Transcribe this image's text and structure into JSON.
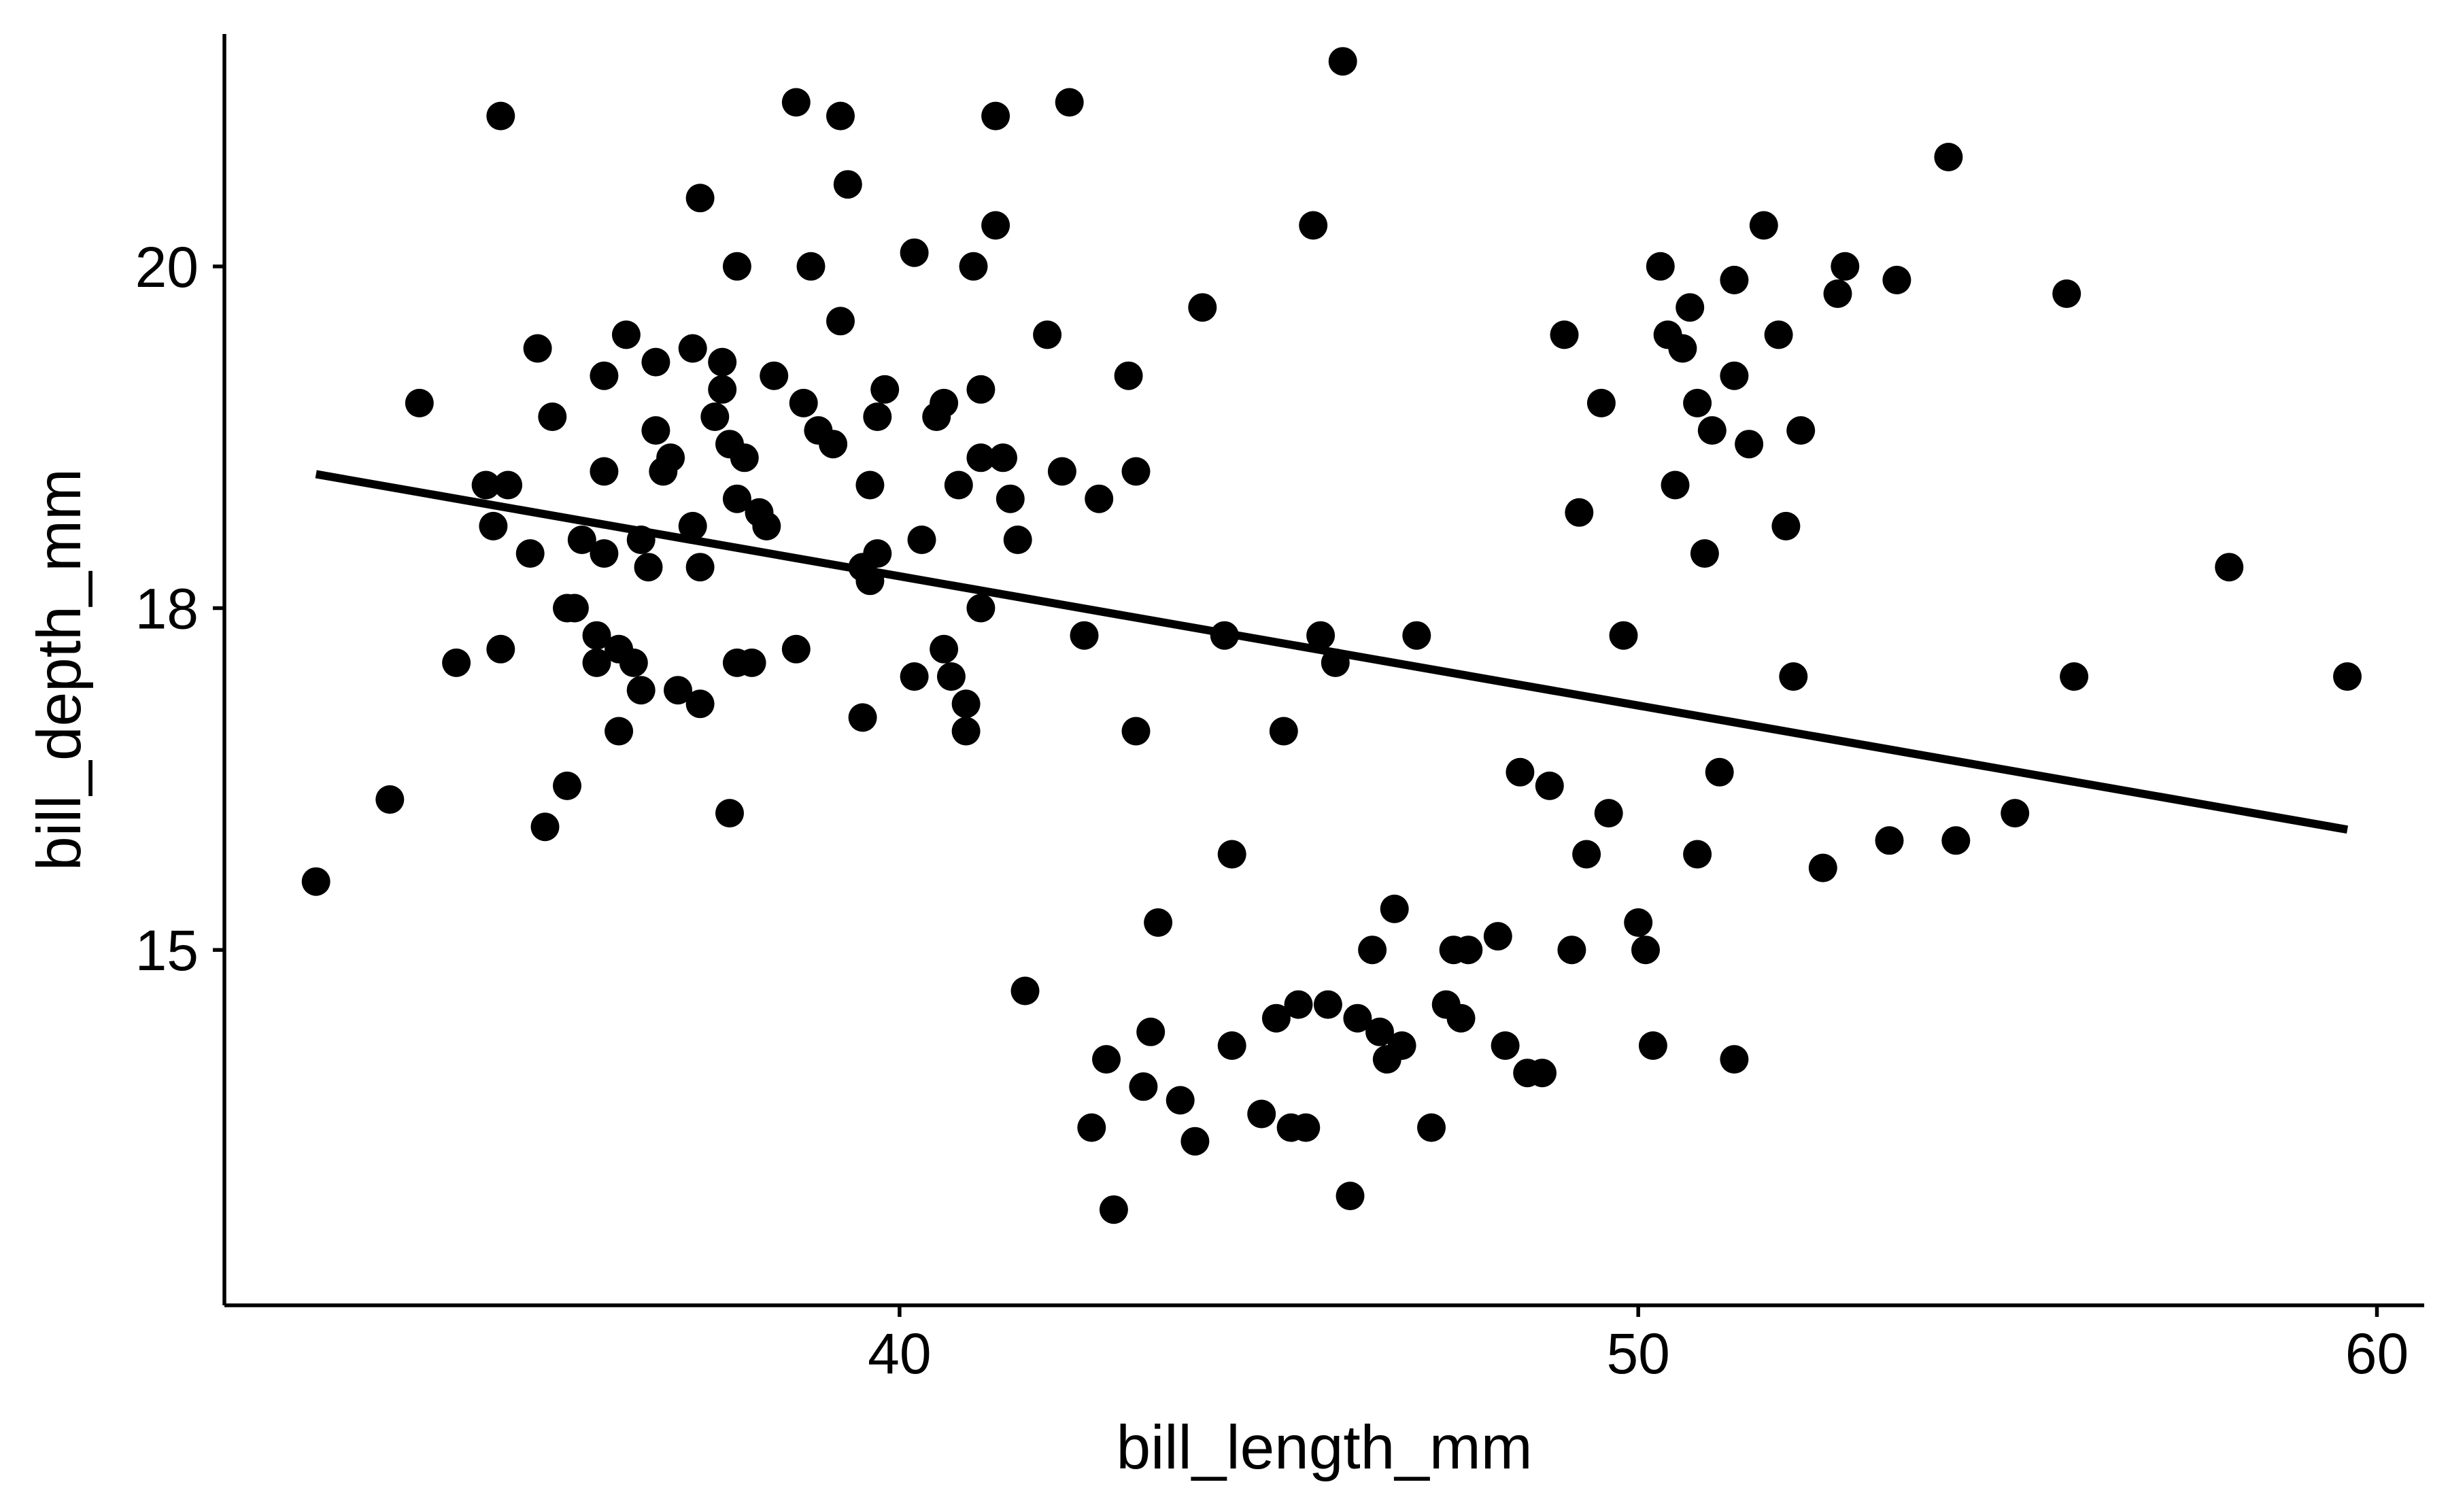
{
  "chart_data": {
    "type": "scatter",
    "title": "",
    "xlabel": "bill_length_mm",
    "ylabel": "bill_depth_mm",
    "xlim": [
      30.86,
      60.64
    ],
    "ylim": [
      12.4,
      21.7
    ],
    "x_ticks": [
      40,
      50,
      60
    ],
    "y_ticks": [
      15,
      18,
      20
    ],
    "y_tick_positions": [
      15,
      17.5,
      20
    ],
    "grid": false,
    "point_color": "#000000",
    "line_color": "#000000",
    "series": [
      {
        "type": "scatter",
        "points": [
          [
            32.1,
            15.5
          ],
          [
            33.1,
            16.1
          ],
          [
            33.5,
            19.0
          ],
          [
            34.0,
            17.1
          ],
          [
            34.4,
            18.4
          ],
          [
            34.5,
            18.1
          ],
          [
            34.6,
            21.1
          ],
          [
            34.6,
            17.2
          ],
          [
            34.7,
            18.4
          ],
          [
            35.0,
            17.9
          ],
          [
            35.1,
            19.4
          ],
          [
            35.2,
            15.9
          ],
          [
            35.3,
            18.9
          ],
          [
            35.5,
            17.5
          ],
          [
            35.5,
            16.2
          ],
          [
            35.6,
            17.5
          ],
          [
            35.7,
            18.0
          ],
          [
            35.9,
            17.1
          ],
          [
            35.9,
            17.3
          ],
          [
            36.0,
            18.5
          ],
          [
            36.0,
            17.9
          ],
          [
            36.0,
            19.2
          ],
          [
            36.2,
            16.6
          ],
          [
            36.2,
            17.2
          ],
          [
            36.3,
            19.5
          ],
          [
            36.4,
            17.1
          ],
          [
            36.5,
            16.9
          ],
          [
            36.5,
            18.0
          ],
          [
            36.6,
            17.8
          ],
          [
            36.7,
            18.8
          ],
          [
            36.7,
            19.3
          ],
          [
            36.8,
            18.5
          ],
          [
            36.9,
            18.6
          ],
          [
            37.0,
            16.9
          ],
          [
            37.2,
            18.1
          ],
          [
            37.2,
            19.4
          ],
          [
            37.3,
            16.8
          ],
          [
            37.3,
            17.8
          ],
          [
            37.3,
            20.5
          ],
          [
            37.5,
            18.9
          ],
          [
            37.6,
            19.3
          ],
          [
            37.6,
            19.1
          ],
          [
            37.7,
            18.7
          ],
          [
            37.7,
            16.0
          ],
          [
            37.8,
            18.3
          ],
          [
            37.8,
            20.0
          ],
          [
            37.8,
            17.1
          ],
          [
            37.9,
            18.6
          ],
          [
            38.0,
            17.1
          ],
          [
            38.1,
            18.2
          ],
          [
            38.2,
            18.1
          ],
          [
            38.3,
            19.2
          ],
          [
            38.6,
            21.2
          ],
          [
            38.6,
            17.2
          ],
          [
            38.7,
            19.0
          ],
          [
            38.8,
            20.0
          ],
          [
            38.9,
            18.8
          ],
          [
            39.1,
            18.7
          ],
          [
            39.2,
            19.6
          ],
          [
            39.2,
            21.1
          ],
          [
            39.3,
            20.6
          ],
          [
            39.5,
            16.7
          ],
          [
            39.5,
            17.8
          ],
          [
            39.6,
            17.7
          ],
          [
            39.6,
            18.4
          ],
          [
            39.7,
            18.9
          ],
          [
            39.7,
            17.9
          ],
          [
            39.8,
            19.1
          ],
          [
            40.2,
            17.0
          ],
          [
            40.2,
            20.1
          ],
          [
            40.3,
            18.0
          ],
          [
            40.5,
            18.9
          ],
          [
            40.6,
            17.2
          ],
          [
            40.6,
            19.0
          ],
          [
            40.7,
            17.0
          ],
          [
            40.8,
            18.4
          ],
          [
            40.9,
            16.6
          ],
          [
            40.9,
            16.8
          ],
          [
            41.0,
            20.0
          ],
          [
            41.1,
            19.1
          ],
          [
            41.1,
            18.6
          ],
          [
            41.1,
            17.5
          ],
          [
            41.3,
            21.1
          ],
          [
            41.3,
            20.3
          ],
          [
            41.4,
            18.6
          ],
          [
            41.5,
            18.3
          ],
          [
            41.6,
            18.0
          ],
          [
            41.7,
            14.7
          ],
          [
            42.0,
            19.5
          ],
          [
            42.2,
            18.5
          ],
          [
            42.3,
            21.2
          ],
          [
            42.5,
            17.3
          ],
          [
            42.6,
            13.7
          ],
          [
            42.7,
            18.3
          ],
          [
            42.8,
            14.2
          ],
          [
            42.9,
            13.1
          ],
          [
            43.1,
            19.2
          ],
          [
            43.2,
            18.5
          ],
          [
            43.2,
            16.6
          ],
          [
            43.3,
            14.0
          ],
          [
            43.4,
            14.4
          ],
          [
            43.5,
            15.2
          ],
          [
            43.8,
            13.9
          ],
          [
            44.0,
            13.6
          ],
          [
            44.1,
            19.7
          ],
          [
            44.4,
            17.3
          ],
          [
            44.5,
            14.3
          ],
          [
            44.5,
            15.7
          ],
          [
            44.9,
            13.8
          ],
          [
            45.1,
            14.5
          ],
          [
            45.2,
            16.6
          ],
          [
            45.3,
            13.7
          ],
          [
            45.4,
            14.6
          ],
          [
            45.5,
            13.7
          ],
          [
            45.6,
            20.3
          ],
          [
            45.7,
            17.3
          ],
          [
            45.8,
            14.6
          ],
          [
            45.9,
            17.1
          ],
          [
            46.0,
            21.5
          ],
          [
            46.1,
            13.2
          ],
          [
            46.2,
            14.5
          ],
          [
            46.4,
            15.0
          ],
          [
            46.5,
            14.4
          ],
          [
            46.6,
            14.2
          ],
          [
            46.7,
            15.3
          ],
          [
            46.8,
            14.3
          ],
          [
            47.0,
            17.3
          ],
          [
            47.2,
            13.7
          ],
          [
            47.4,
            14.6
          ],
          [
            47.5,
            15.0
          ],
          [
            47.6,
            14.5
          ],
          [
            47.7,
            15.0
          ],
          [
            48.1,
            15.1
          ],
          [
            48.2,
            14.3
          ],
          [
            48.4,
            16.3
          ],
          [
            48.5,
            14.1
          ],
          [
            48.7,
            14.1
          ],
          [
            48.8,
            16.2
          ],
          [
            49.0,
            19.5
          ],
          [
            49.1,
            15.0
          ],
          [
            49.2,
            18.2
          ],
          [
            49.3,
            15.7
          ],
          [
            49.5,
            19.0
          ],
          [
            49.6,
            16.0
          ],
          [
            49.8,
            17.3
          ],
          [
            50.0,
            15.2
          ],
          [
            50.1,
            15.0
          ],
          [
            50.2,
            14.3
          ],
          [
            50.3,
            20.0
          ],
          [
            50.4,
            19.5
          ],
          [
            50.5,
            18.4
          ],
          [
            50.6,
            19.4
          ],
          [
            50.7,
            19.7
          ],
          [
            50.8,
            15.7
          ],
          [
            50.8,
            19.0
          ],
          [
            50.9,
            17.9
          ],
          [
            51.0,
            18.8
          ],
          [
            51.1,
            16.3
          ],
          [
            51.3,
            19.2
          ],
          [
            51.3,
            19.9
          ],
          [
            51.3,
            14.2
          ],
          [
            51.5,
            18.7
          ],
          [
            51.7,
            20.3
          ],
          [
            51.9,
            19.5
          ],
          [
            52.0,
            18.1
          ],
          [
            52.1,
            17.0
          ],
          [
            52.2,
            18.8
          ],
          [
            52.5,
            15.6
          ],
          [
            52.7,
            19.8
          ],
          [
            52.8,
            20.0
          ],
          [
            53.4,
            15.8
          ],
          [
            53.5,
            19.9
          ],
          [
            54.2,
            20.8
          ],
          [
            54.3,
            15.8
          ],
          [
            55.1,
            16.0
          ],
          [
            55.8,
            19.8
          ],
          [
            55.9,
            17.0
          ],
          [
            58.0,
            17.8
          ],
          [
            59.6,
            17.0
          ]
        ]
      }
    ],
    "trend_line": {
      "x": [
        32.1,
        59.6
      ],
      "y": [
        18.48,
        15.88
      ]
    }
  }
}
